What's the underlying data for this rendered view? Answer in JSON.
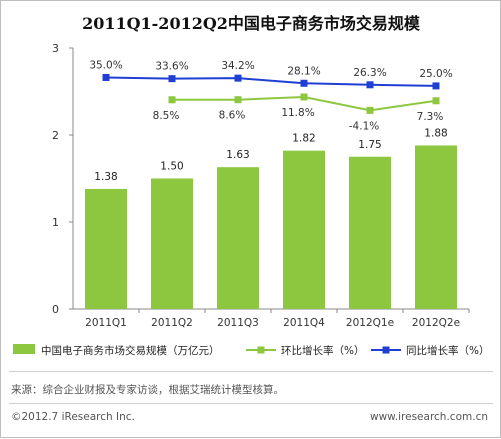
{
  "chart_data": {
    "type": "bar",
    "title": "2011Q1-2012Q2中国电子商务市场交易规模",
    "categories": [
      "2011Q1",
      "2011Q2",
      "2011Q3",
      "2011Q4",
      "2012Q1e",
      "2012Q2e"
    ],
    "ylim": [
      0,
      3
    ],
    "yticks": [
      "0",
      "1",
      "2",
      "3"
    ],
    "grid": false,
    "legend_position": "bottom",
    "series": [
      {
        "name": "中国电子商务市场交易规模（万亿元）",
        "kind": "bar",
        "color": "#8dc63f",
        "values": [
          1.38,
          1.5,
          1.63,
          1.82,
          1.75,
          1.88
        ],
        "labels": [
          "1.38",
          "1.50",
          "1.63",
          "1.82",
          "1.75",
          "1.88"
        ]
      },
      {
        "name": "环比增长率（%）",
        "kind": "line",
        "color": "#8dc63f",
        "values": [
          null,
          8.5,
          8.6,
          11.8,
          -4.1,
          7.3
        ],
        "labels": [
          "",
          "8.5%",
          "8.6%",
          "11.8%",
          "-4.1%",
          "7.3%"
        ]
      },
      {
        "name": "同比增长率（%）",
        "kind": "line",
        "color": "#1f3fd4",
        "values": [
          35.0,
          33.6,
          34.2,
          28.1,
          26.3,
          25.0
        ],
        "labels": [
          "35.0%",
          "33.6%",
          "34.2%",
          "28.1%",
          "26.3%",
          "25.0%"
        ]
      }
    ]
  },
  "footer": {
    "source": "来源：综合企业财报及专家访谈，根据艾瑞统计模型核算。",
    "copyright": "©2012.7 iResearch Inc.",
    "website": "www.iresearch.com.cn"
  }
}
